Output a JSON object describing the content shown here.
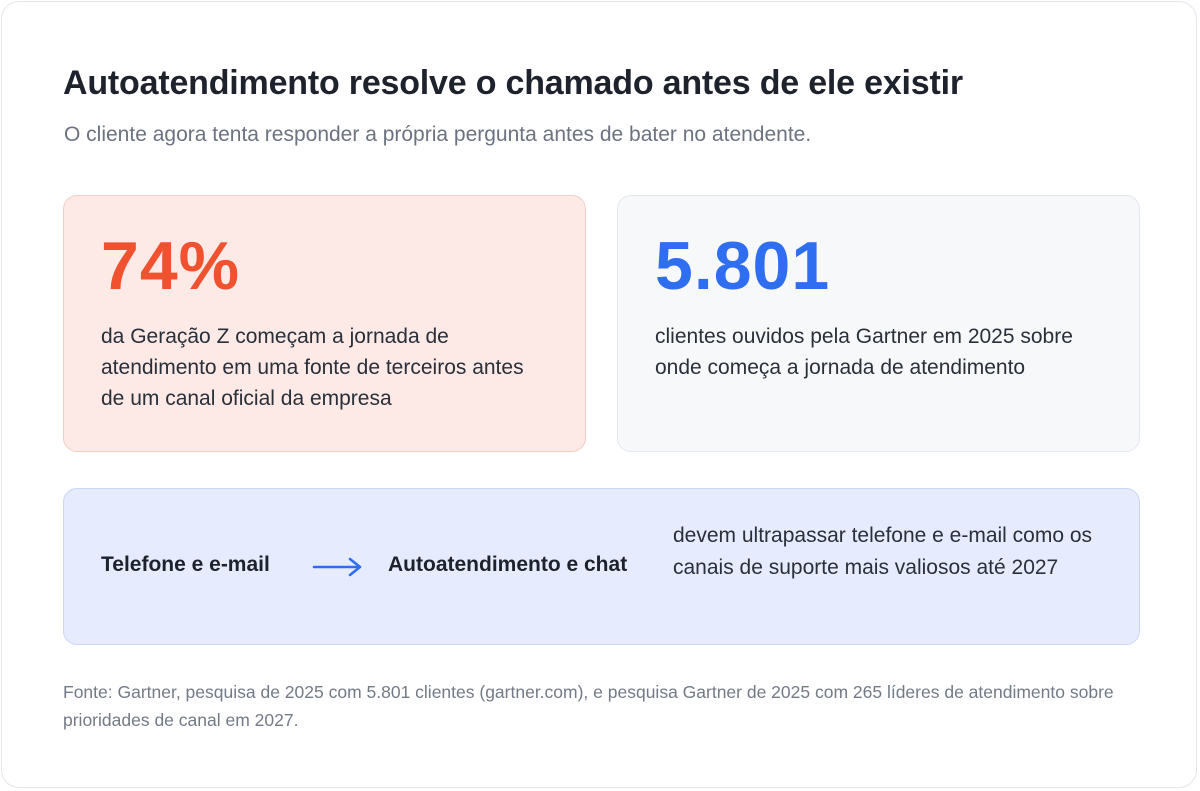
{
  "header": {
    "title": "Autoatendimento resolve o chamado antes de ele existir",
    "subtitle": "O cliente agora tenta responder a própria pergunta antes de bater no atendente."
  },
  "stats": [
    {
      "value": "74%",
      "description": "da Geração Z começam a jornada de atendimento em uma fonte de terceiros antes de um canal oficial da empresa",
      "accent_color": "#f0522f"
    },
    {
      "value": "5.801",
      "description": "clientes ouvidos pela Gartner em 2025 sobre onde começa a jornada de atendimento",
      "accent_color": "#2f6ef0"
    }
  ],
  "shift": {
    "from": "Telefone e e-mail",
    "arrow_icon": "arrow-right-icon",
    "to": "Autoatendimento e chat",
    "description": "devem ultrapassar telefone e e-mail como os canais de suporte mais valiosos até 2027"
  },
  "footer": {
    "source": "Fonte: Gartner, pesquisa de 2025 com 5.801 clientes (gartner.com), e pesquisa Gartner de 2025 com 265 líderes de atendimento sobre prioridades de canal em 2027."
  }
}
